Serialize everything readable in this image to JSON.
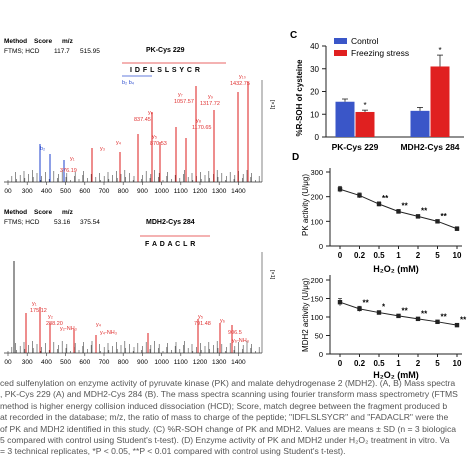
{
  "panels": {
    "A": {
      "header": {
        "method": "Method",
        "score": "Score",
        "mz": "m/z",
        "row": "FTMS; HCD",
        "score_val": "117.7",
        "mz_val": "515.95"
      },
      "title": "PK-Cys 229",
      "sequence": "I D F L S L S Y C R",
      "xticks": [
        "00",
        "300",
        "400",
        "500",
        "600",
        "700",
        "800",
        "900",
        "1000",
        "1100",
        "1200",
        "1300",
        "1400"
      ],
      "peaks": [
        {
          "label": "b₂",
          "mz": 263
        },
        {
          "label": "376.19",
          "mz": 376
        },
        {
          "label": "y₁",
          "mz": 300
        },
        {
          "label": "y₃",
          "mz": 480
        },
        {
          "label": "y₄",
          "mz": 593
        },
        {
          "label": "y₅",
          "mz": 680
        },
        {
          "label": "837.45",
          "mz": 837
        },
        {
          "label": "y₆",
          "mz": 857
        },
        {
          "label": "870.53",
          "mz": 870
        },
        {
          "label": "y₇",
          "mz": 1057.57
        },
        {
          "label": "1057.57",
          "mz": 1057.57
        },
        {
          "label": "y₈",
          "mz": 1170.65
        },
        {
          "label": "1170.65",
          "mz": 1170.65
        },
        {
          "label": "1317.72",
          "mz": 1317.72
        },
        {
          "label": "1432.75",
          "mz": 1432.75
        }
      ],
      "ion_labels": [
        "y₁₀",
        "y₉",
        "y₈⁺",
        "y₁₀-H₂O",
        "y₉-H₂O",
        "y₈-H₂O"
      ]
    },
    "B": {
      "header": {
        "method": "Method",
        "score": "Score",
        "mz": "m/z",
        "row": "FTMS; HCD",
        "score_val": "53.16",
        "mz_val": "375.54"
      },
      "title": "MDH2-Cys 284",
      "sequence": "F A D A C L R",
      "xticks": [
        "00",
        "300",
        "400",
        "500",
        "600",
        "700",
        "800",
        "900",
        "1000",
        "1100",
        "1200",
        "1300",
        "1400"
      ],
      "peak_labels": [
        "y₁",
        "175.12",
        "y₂",
        "y₂-NH₃",
        "y₂-H₂O",
        "y₃",
        "288.20",
        "y₄",
        "y₄-NH₃",
        "y₅-NH₃",
        "y₅",
        "y₆",
        "791.48",
        "y₆-NH₃",
        "906.5",
        "991.5"
      ]
    },
    "C": {
      "letter": "C",
      "ylabel": "%R-SOH of cysteine",
      "yticks": [
        "0",
        "10",
        "20",
        "30",
        "40"
      ],
      "legend": [
        "Control",
        "Freezing stress"
      ]
    },
    "D": {
      "letter": "D",
      "xlabel": "H₂O₂ (mM)",
      "xticks": [
        "0",
        "0.2",
        "0.5",
        "1",
        "2",
        "5",
        "10"
      ],
      "pk_ylabel": "PK activity (U/μg)",
      "pk_yticks": [
        "0",
        "100",
        "200",
        "300"
      ],
      "mdh_ylabel": "MDH2 activity (U/μg)",
      "mdh_yticks": [
        "0",
        "50",
        "100",
        "150",
        "200"
      ]
    }
  },
  "caption": [
    "ced sulfenylation on enzyme activity of pyruvate kinase (PK) and malate dehydrogenase 2 (MDH2). (A, B) Mass spectra",
    ", PK-Cys 229 (A) and MDH2-Cys 284 (B). The mass spectra scanning using fourier transform mass spectrometry (FTMS",
    "method is higher energy collision induced dissociation (HCD); Score, match degree between the fragment produced b",
    "at recorded in the database; m/z, the ratio of mass to charge of the peptide; \"IDFLSLSYCR\" and \"FADACLR\" were the",
    "of PK and MDH2 identified in this study. (C) %R-SOH change of PK and MDH2. Values are means ± SD (n = 3 biologica",
    "5 compared with control using Student's t-test). (D) Enzyme activity of PK and MDH2 under H₂O₂ treatment in vitro. Va",
    "= 3 technical replicates, *P < 0.05, **P < 0.01 compared with control using Student's t-test)."
  ],
  "chart_data": [
    {
      "panel": "C",
      "type": "bar",
      "categories": [
        "PK-Cys 229",
        "MDH2-Cys 284"
      ],
      "series": [
        {
          "name": "Control",
          "values": [
            15.5,
            11.5
          ],
          "errors": [
            1.2,
            1.5
          ],
          "color": "#3a56c8"
        },
        {
          "name": "Freezing stress",
          "values": [
            11.0,
            31.0
          ],
          "errors": [
            0.8,
            5.0
          ],
          "color": "#e02020"
        }
      ],
      "significance": [
        "*",
        "*"
      ],
      "ylabel": "%R-SOH of cysteine",
      "ylim": [
        0,
        40
      ],
      "legend_position": "top-left"
    },
    {
      "panel": "D-top",
      "type": "line",
      "x": [
        "0",
        "0.2",
        "0.5",
        "1",
        "2",
        "5",
        "10"
      ],
      "values": [
        230,
        205,
        170,
        140,
        120,
        100,
        70
      ],
      "errors": [
        12,
        10,
        9,
        8,
        7,
        6,
        8
      ],
      "significance": [
        "",
        "",
        "**",
        "**",
        "**",
        "**",
        ""
      ],
      "xlabel": "H₂O₂ (mM)",
      "ylabel": "PK activity (U/μg)",
      "ylim": [
        0,
        300
      ]
    },
    {
      "panel": "D-bottom",
      "type": "line",
      "x": [
        "0",
        "0.2",
        "0.5",
        "1",
        "2",
        "5",
        "10"
      ],
      "values": [
        140,
        122,
        112,
        103,
        95,
        87,
        78
      ],
      "errors": [
        10,
        7,
        5,
        4,
        4,
        4,
        4
      ],
      "significance": [
        "",
        "**",
        "*",
        "**",
        "**",
        "**",
        "**"
      ],
      "xlabel": "H₂O₂ (mM)",
      "ylabel": "MDH2 activity (U/μg)",
      "ylim": [
        0,
        200
      ]
    }
  ]
}
